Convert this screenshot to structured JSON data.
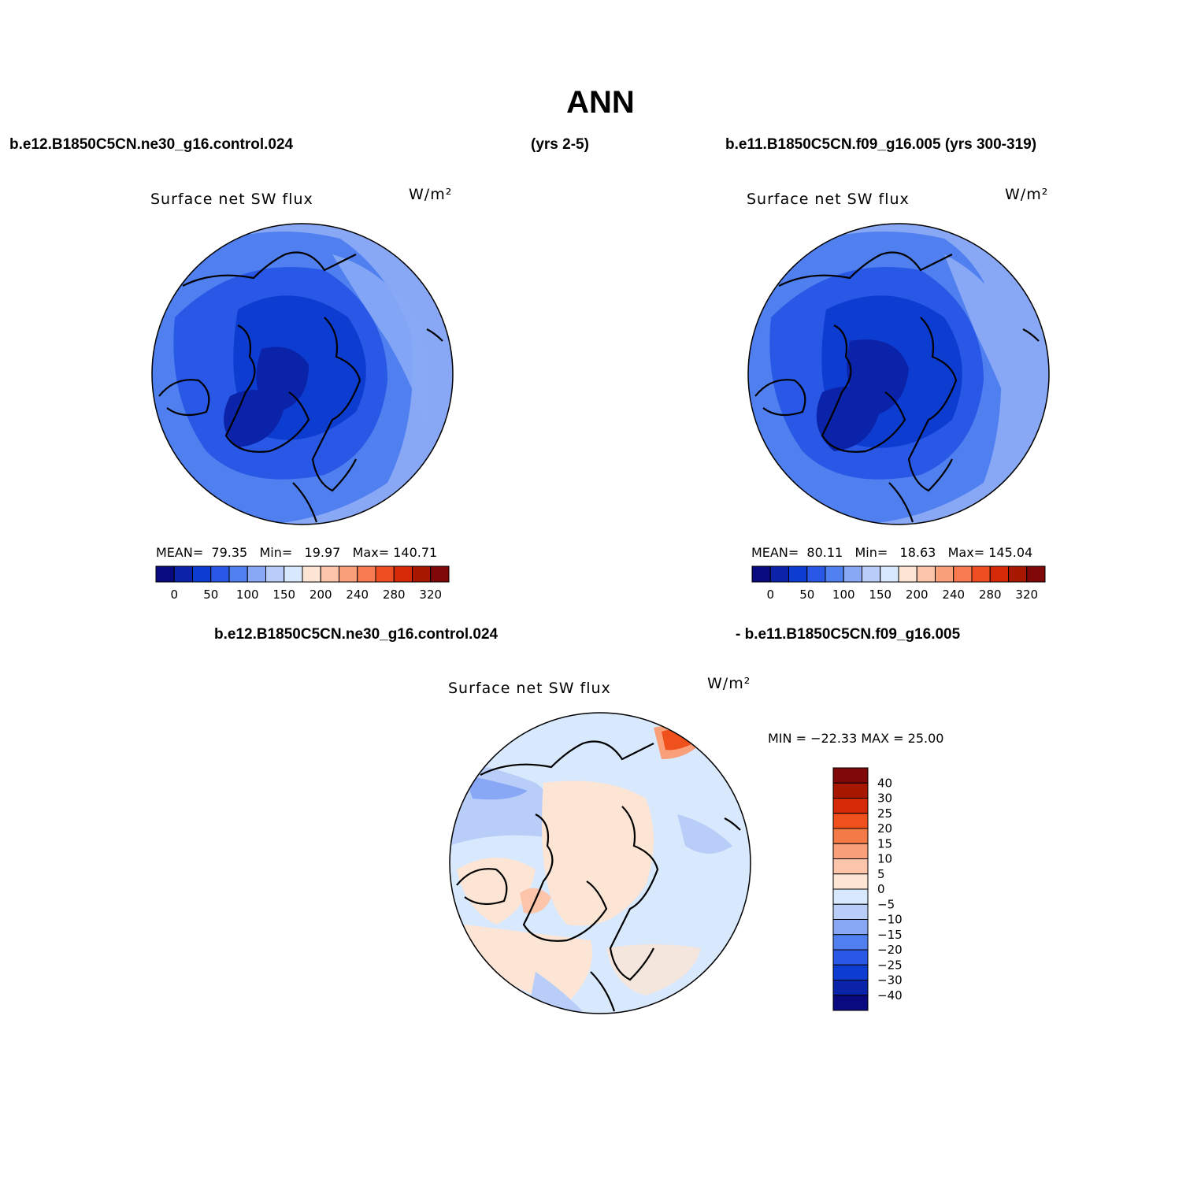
{
  "title": "ANN",
  "header": {
    "left_case": "b.e12.B1850C5CN.ne30_g16.control.024",
    "left_years": "(yrs 2-5)",
    "right_case": "b.e11.B1850C5CN.f09_g16.005 (yrs 300-319)"
  },
  "diff_header": {
    "left": "b.e12.B1850C5CN.ne30_g16.control.024",
    "right": "- b.e11.B1850C5CN.f09_g16.005"
  },
  "panels": [
    {
      "variable": "Surface net SW flux",
      "units": "W/m²",
      "mean_label": "MEAN=",
      "mean": "79.35",
      "min_label": "Min=",
      "min": "19.97",
      "max_label": "Max=",
      "max": "140.71"
    },
    {
      "variable": "Surface net SW flux",
      "units": "W/m²",
      "mean_label": "MEAN=",
      "mean": "80.11",
      "min_label": "Min=",
      "min": "18.63",
      "max_label": "Max=",
      "max": "145.04"
    }
  ],
  "diff_panel": {
    "variable": "Surface net SW flux",
    "units": "W/m²",
    "minmax_text": "MIN = −22.33 MAX =   25.00"
  },
  "colorbar_abs": {
    "colors": [
      "#0a0a80",
      "#0a23a8",
      "#0d3cd0",
      "#2a58e6",
      "#5080f0",
      "#88a8f5",
      "#b8cdf8",
      "#d8e8fd",
      "#fde5d5",
      "#fcc5aa",
      "#f9a07a",
      "#f77a50",
      "#ef4e22",
      "#d42a08",
      "#a81800",
      "#800808"
    ],
    "tick_labels": [
      "0",
      "50",
      "100",
      "150",
      "200",
      "240",
      "280",
      "320"
    ]
  },
  "colorbar_diff": {
    "colors": [
      "#800808",
      "#a81800",
      "#d42a08",
      "#f0501c",
      "#f47a48",
      "#f9a07a",
      "#fcc5aa",
      "#fde5d5",
      "#d8e8fd",
      "#b8cdf8",
      "#88a8f5",
      "#5080f0",
      "#2a58e6",
      "#0d3cd0",
      "#0a23a8",
      "#0a0a80"
    ],
    "tick_labels": [
      "40",
      "30",
      "25",
      "20",
      "15",
      "10",
      "5",
      "0",
      "−5",
      "−10",
      "−15",
      "−20",
      "−25",
      "−30",
      "−40"
    ]
  }
}
